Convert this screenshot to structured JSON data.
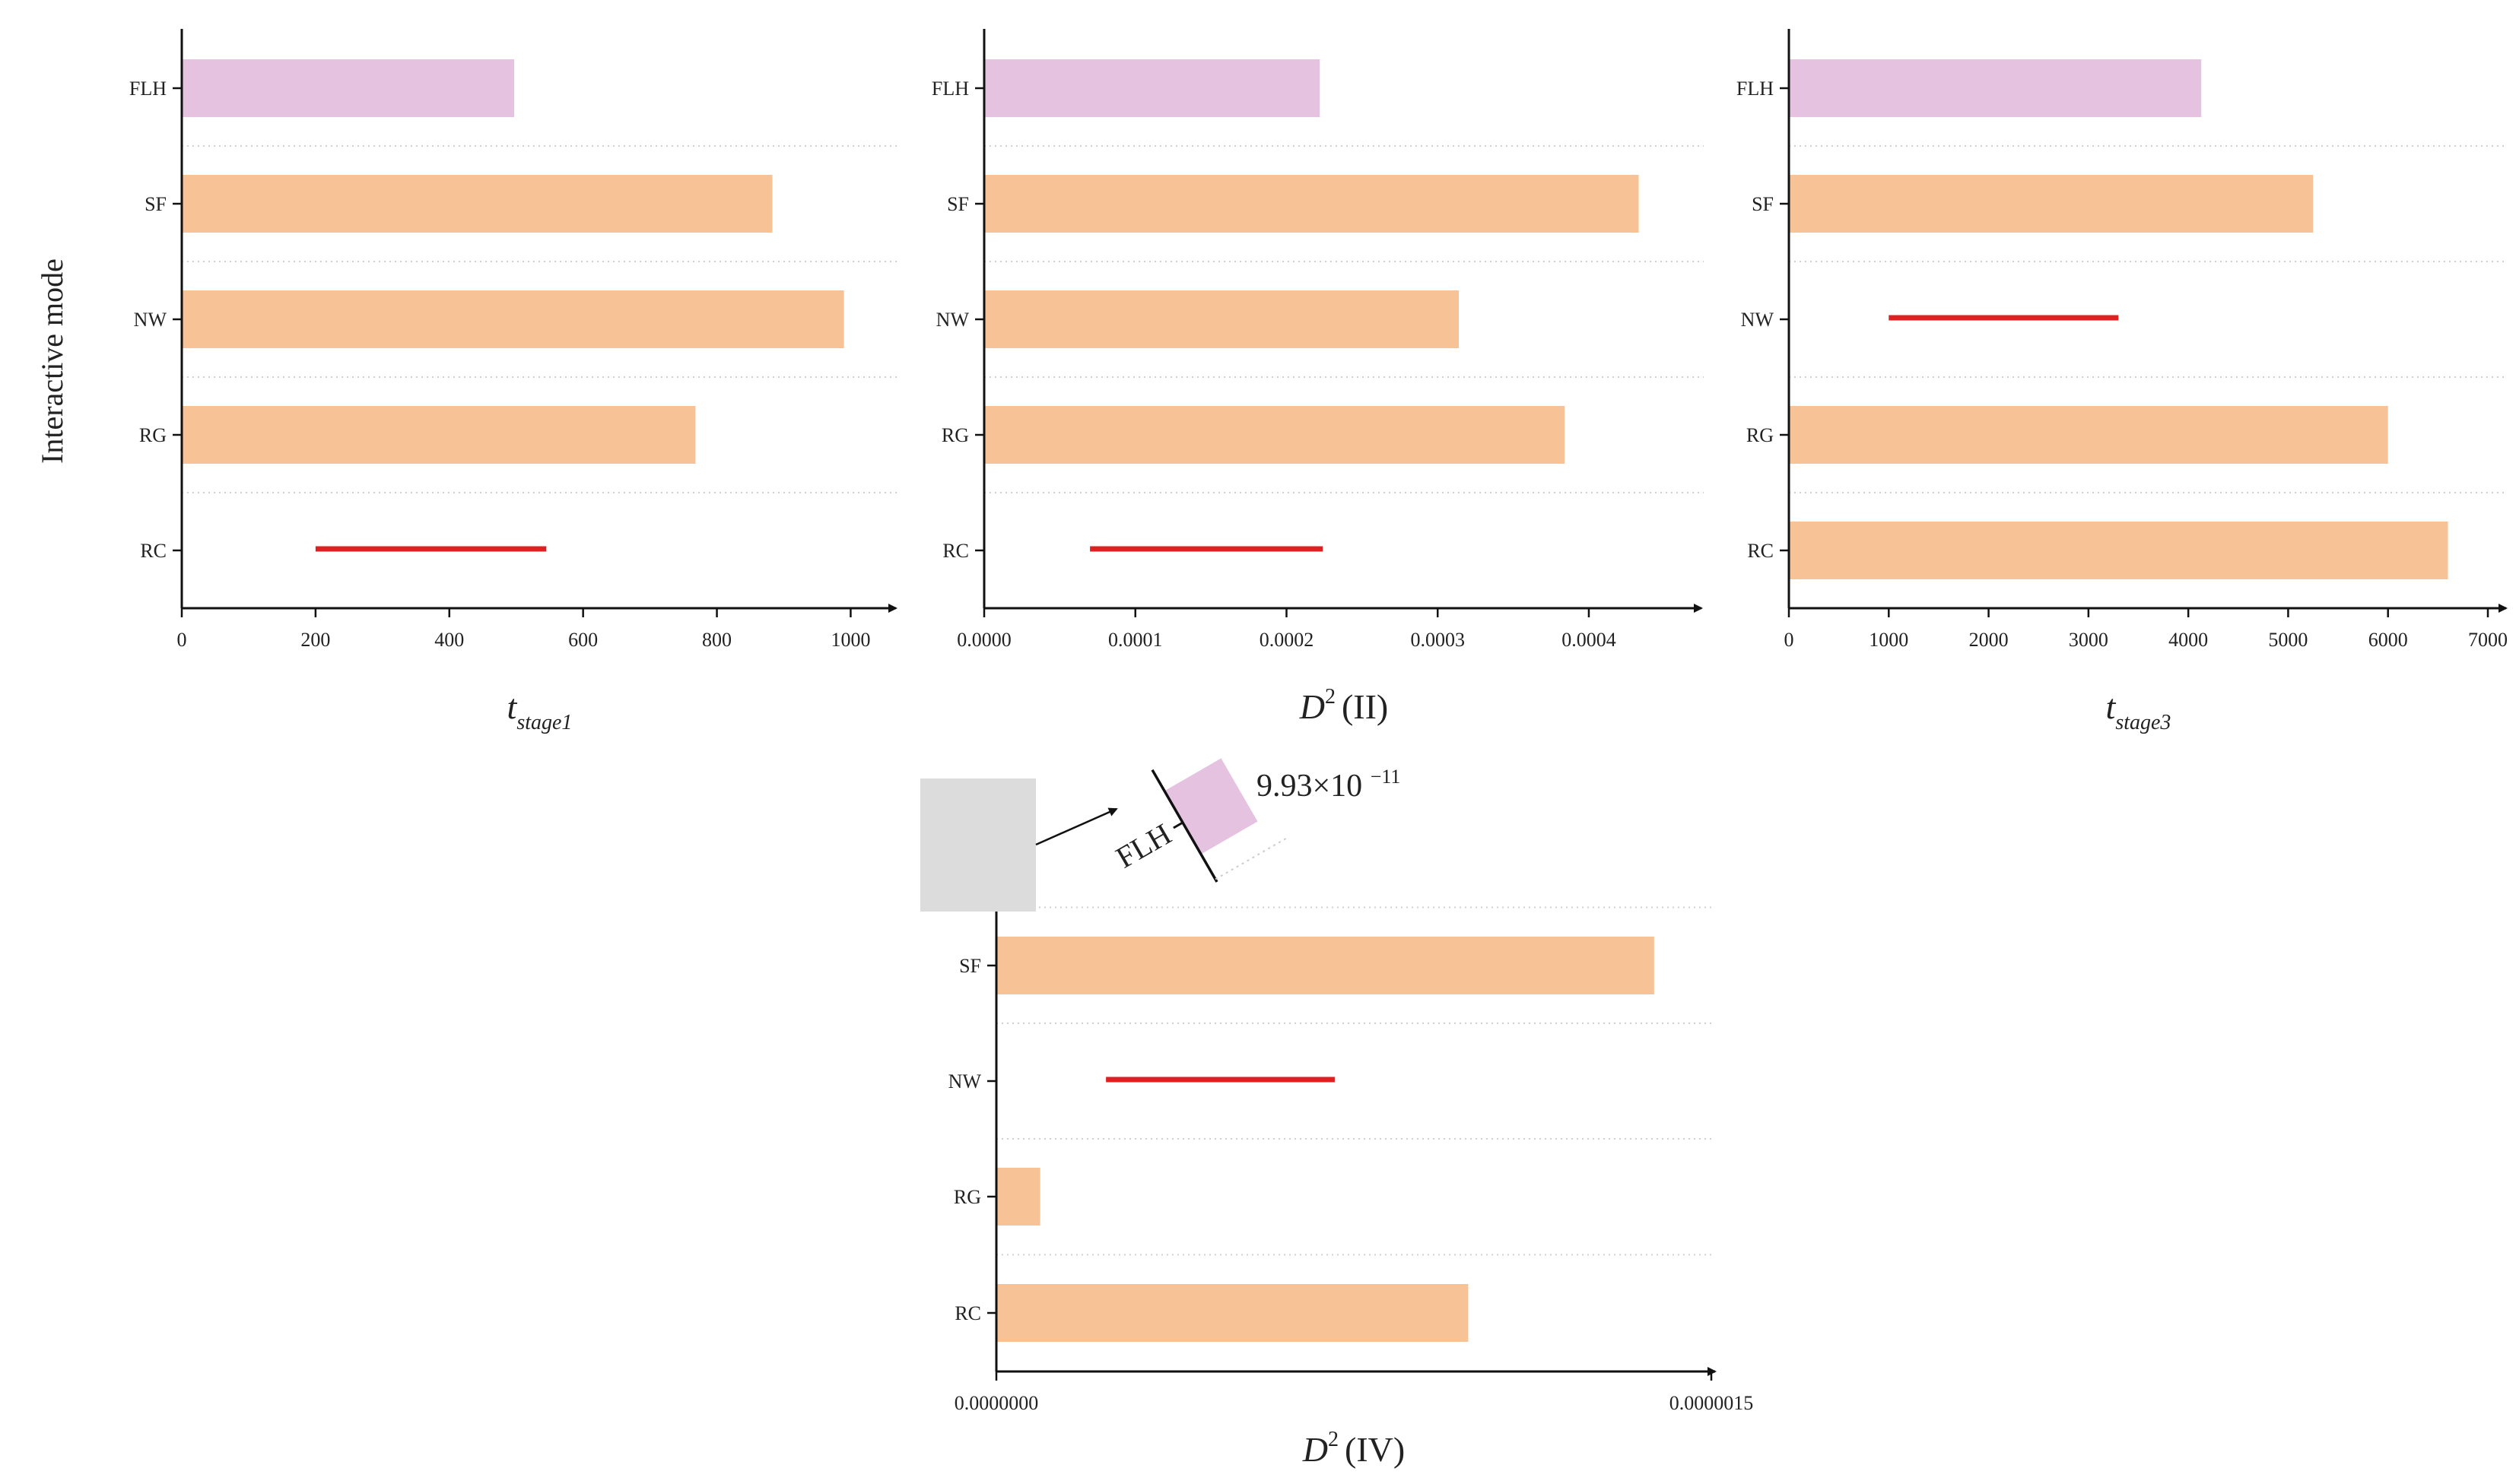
{
  "figure": {
    "y_axis_label": "Interactive mode",
    "categories": [
      "FLH",
      "SF",
      "NW",
      "RG",
      "RC"
    ]
  },
  "chart_data": [
    {
      "type": "bar",
      "orientation": "horizontal",
      "title": "",
      "xlabel_main": "t",
      "xlabel_sub": "stage1",
      "ylabel": "Interactive mode",
      "categories": [
        "FLH",
        "SF",
        "NW",
        "RG",
        "RC"
      ],
      "values": [
        497,
        883,
        990,
        768,
        null
      ],
      "bar_colors": [
        "#e5c3e0",
        "#f7c396",
        "#f7c396",
        "#f7c396",
        null
      ],
      "missing_marker": {
        "category": "RC",
        "x_start": 200,
        "x_end": 545
      },
      "xlim": [
        0,
        1070
      ],
      "xticks": [
        0,
        200,
        400,
        600,
        800,
        1000
      ],
      "xtick_labels": [
        "0",
        "200",
        "400",
        "600",
        "800",
        "1000"
      ],
      "grid": "dotted horizontal separators"
    },
    {
      "type": "bar",
      "orientation": "horizontal",
      "title": "",
      "xlabel_main": "D",
      "xlabel_sup": "2",
      "xlabel_paren": "II",
      "categories": [
        "FLH",
        "SF",
        "NW",
        "RG",
        "RC"
      ],
      "values": [
        0.000222,
        0.000433,
        0.000314,
        0.000384,
        null
      ],
      "bar_colors": [
        "#e5c3e0",
        "#f7c396",
        "#f7c396",
        "#f7c396",
        null
      ],
      "missing_marker": {
        "category": "RC",
        "x_start": 7e-05,
        "x_end": 0.000224
      },
      "xlim": [
        0,
        0.000476
      ],
      "xticks": [
        0,
        0.0001,
        0.0002,
        0.0003,
        0.0004
      ],
      "xtick_labels": [
        "0.0000",
        "0.0001",
        "0.0002",
        "0.0003",
        "0.0004"
      ],
      "grid": "dotted horizontal separators"
    },
    {
      "type": "bar",
      "orientation": "horizontal",
      "title": "",
      "xlabel_main": "t",
      "xlabel_sub": "stage3",
      "categories": [
        "FLH",
        "SF",
        "NW",
        "RG",
        "RC"
      ],
      "values": [
        4130,
        5250,
        null,
        6000,
        6600
      ],
      "bar_colors": [
        "#e5c3e0",
        "#f7c396",
        null,
        "#f7c396",
        "#f7c396"
      ],
      "missing_marker": {
        "category": "NW",
        "x_start": 1000,
        "x_end": 3300
      },
      "xlim": [
        0,
        7000
      ],
      "xticks": [
        0,
        1000,
        2000,
        3000,
        4000,
        5000,
        6000,
        7000
      ],
      "xtick_labels": [
        "0",
        "1000",
        "2000",
        "3000",
        "4000",
        "5000",
        "6000",
        "7000"
      ],
      "grid": "dotted horizontal separators"
    },
    {
      "type": "bar",
      "orientation": "horizontal",
      "title": "",
      "xlabel_main": "D",
      "xlabel_sup": "2",
      "xlabel_paren": "IV",
      "categories": [
        "FLH",
        "SF",
        "NW",
        "RG",
        "RC"
      ],
      "values": [
        9.93e-11,
        1.38e-06,
        null,
        9.2e-08,
        9.9e-07
      ],
      "bar_colors": [
        "#e5c3e0",
        "#f7c396",
        null,
        "#f7c396",
        "#f7c396"
      ],
      "missing_marker": {
        "category": "NW",
        "x_start": 2.3e-07,
        "x_end": 7.1e-07
      },
      "xlim": [
        0,
        1.5e-06
      ],
      "xticks": [
        0,
        1.5e-06
      ],
      "xtick_labels": [
        "0.0000000",
        "0.0000015"
      ],
      "annotation": {
        "category": "FLH",
        "label": "FLH",
        "value_text": "9.93×10",
        "value_exponent": "−11"
      },
      "grid": "dotted horizontal separators"
    }
  ],
  "colors": {
    "flh_bar": "#e5c3e0",
    "bar": "#f7c396",
    "marker": "#e02020",
    "axis": "#111111",
    "highlight_box": "#dcdcdc"
  }
}
